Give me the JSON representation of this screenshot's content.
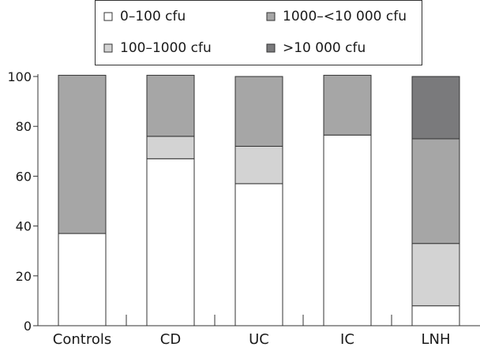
{
  "chart_data": {
    "type": "bar",
    "stacked": true,
    "categories": [
      "Controls",
      "CD",
      "UC",
      "IC",
      "LNH"
    ],
    "series": [
      {
        "name": "0–100 cfu",
        "color": "#ffffff",
        "values": [
          37,
          67,
          57,
          76.5,
          8
        ]
      },
      {
        "name": "100–1000 cfu",
        "color": "#d3d3d3",
        "values": [
          0,
          9,
          15,
          0,
          25
        ]
      },
      {
        "name": "1000–<10 000 cfu",
        "color": "#a6a6a6",
        "values": [
          63.5,
          24.5,
          28,
          24,
          42
        ]
      },
      {
        "name": ">10 000 cfu",
        "color": "#7a7a7c",
        "values": [
          0,
          0,
          0,
          0,
          25
        ]
      }
    ],
    "ylim": [
      0,
      100
    ],
    "yticks": [
      0,
      20,
      40,
      60,
      80,
      100
    ],
    "title": "",
    "xlabel": "",
    "ylabel": "",
    "grid": false,
    "legend": "top"
  }
}
